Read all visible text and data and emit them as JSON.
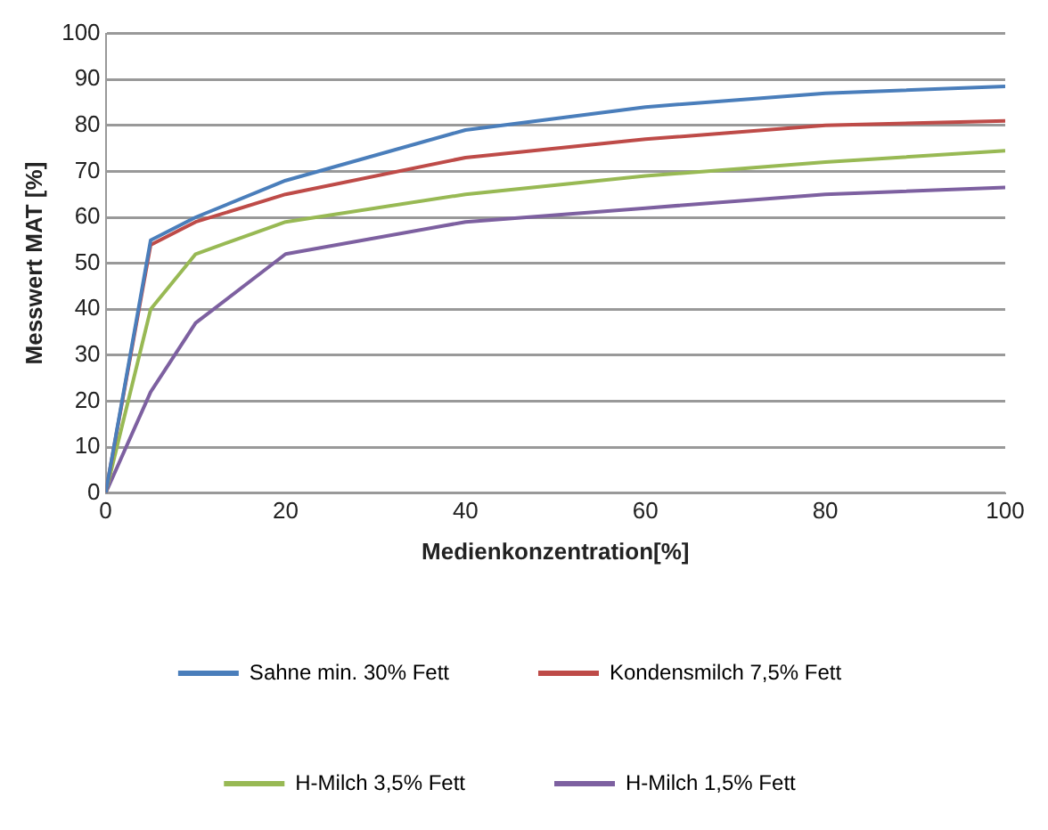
{
  "chart_data": {
    "type": "line",
    "xlabel": "Medienkonzentration[%]",
    "ylabel": "Messwert MAT [%]",
    "x": [
      0,
      5,
      10,
      20,
      40,
      60,
      80,
      100
    ],
    "series": [
      {
        "name": "Sahne min. 30% Fett",
        "color": "#4a7ebb",
        "values": [
          0,
          55,
          60,
          68,
          79,
          84,
          87,
          88.5
        ]
      },
      {
        "name": "Kondensmilch 7,5% Fett",
        "color": "#be4b48",
        "values": [
          0,
          54,
          59,
          65,
          73,
          77,
          80,
          81
        ]
      },
      {
        "name": "H-Milch 3,5% Fett",
        "color": "#98b954",
        "values": [
          0,
          40,
          52,
          59,
          65,
          69,
          72,
          74.5
        ]
      },
      {
        "name": "H-Milch 1,5% Fett",
        "color": "#7d60a0",
        "values": [
          0,
          22,
          37,
          52,
          59,
          62,
          65,
          66.5
        ]
      }
    ],
    "xlim": [
      0,
      100
    ],
    "xticks": [
      0,
      20,
      40,
      60,
      80,
      100
    ],
    "ylim": [
      0,
      100
    ],
    "yticks": [
      0,
      10,
      20,
      30,
      40,
      50,
      60,
      70,
      80,
      90,
      100
    ],
    "grid": "y",
    "legend": "bottom",
    "marker": "none",
    "line_style": "solid"
  }
}
